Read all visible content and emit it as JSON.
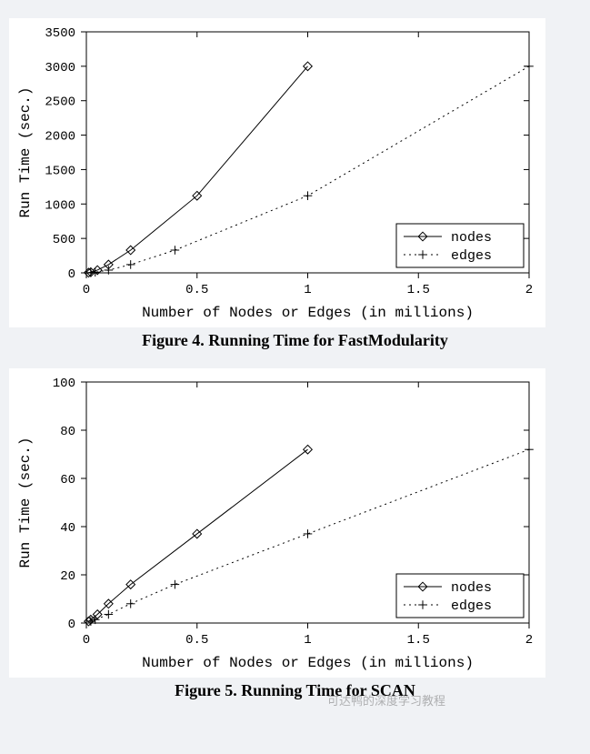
{
  "charts": [
    {
      "id": "fig4",
      "caption": "Figure 4. Running Time for FastModularity",
      "xlabel": "Number of Nodes or Edges (in millions)",
      "ylabel": "Run Time (sec.)",
      "xlim": [
        0,
        2
      ],
      "ylim": [
        0,
        3500
      ],
      "xtick_step": 0.5,
      "ytick_step": 500,
      "background_color": "#ffffff",
      "border_color": "#000000",
      "grid": false,
      "label_font": "Courier New",
      "label_fontsize": 16,
      "tick_fontsize": 14,
      "series_colors": {
        "nodes": "#000000",
        "edges": "#000000"
      },
      "line_styles": {
        "nodes": "solid",
        "edges": "dotted"
      },
      "markers": {
        "nodes": "diamond",
        "edges": "plus"
      },
      "marker_size": 6,
      "line_width": 1,
      "legend": {
        "position": "bottom-right",
        "entries": [
          {
            "key": "nodes",
            "label": "nodes"
          },
          {
            "key": "edges",
            "label": "edges"
          }
        ]
      },
      "series": {
        "nodes": [
          {
            "x": 0.01,
            "y": 3
          },
          {
            "x": 0.02,
            "y": 10
          },
          {
            "x": 0.05,
            "y": 40
          },
          {
            "x": 0.1,
            "y": 120
          },
          {
            "x": 0.2,
            "y": 330
          },
          {
            "x": 0.5,
            "y": 1120
          },
          {
            "x": 1.0,
            "y": 3000
          }
        ],
        "edges": [
          {
            "x": 0.02,
            "y": 3
          },
          {
            "x": 0.04,
            "y": 10
          },
          {
            "x": 0.1,
            "y": 40
          },
          {
            "x": 0.2,
            "y": 120
          },
          {
            "x": 0.4,
            "y": 330
          },
          {
            "x": 1.0,
            "y": 1120
          },
          {
            "x": 2.0,
            "y": 3000
          }
        ]
      }
    },
    {
      "id": "fig5",
      "caption": "Figure 5. Running Time for SCAN",
      "xlabel": "Number of Nodes or Edges (in millions)",
      "ylabel": "Run Time (sec.)",
      "xlim": [
        0,
        2
      ],
      "ylim": [
        0,
        100
      ],
      "xtick_step": 0.5,
      "ytick_step": 20,
      "background_color": "#ffffff",
      "border_color": "#000000",
      "grid": false,
      "label_font": "Courier New",
      "label_fontsize": 16,
      "tick_fontsize": 14,
      "series_colors": {
        "nodes": "#000000",
        "edges": "#000000"
      },
      "line_styles": {
        "nodes": "solid",
        "edges": "dotted"
      },
      "markers": {
        "nodes": "diamond",
        "edges": "plus"
      },
      "marker_size": 6,
      "line_width": 1,
      "legend": {
        "position": "bottom-right",
        "entries": [
          {
            "key": "nodes",
            "label": "nodes"
          },
          {
            "key": "edges",
            "label": "edges"
          }
        ]
      },
      "series": {
        "nodes": [
          {
            "x": 0.01,
            "y": 0.7
          },
          {
            "x": 0.02,
            "y": 1.4
          },
          {
            "x": 0.05,
            "y": 3.6
          },
          {
            "x": 0.1,
            "y": 8
          },
          {
            "x": 0.2,
            "y": 16
          },
          {
            "x": 0.5,
            "y": 37
          },
          {
            "x": 1.0,
            "y": 72
          }
        ],
        "edges": [
          {
            "x": 0.02,
            "y": 0.7
          },
          {
            "x": 0.04,
            "y": 1.4
          },
          {
            "x": 0.1,
            "y": 3.6
          },
          {
            "x": 0.2,
            "y": 8
          },
          {
            "x": 0.4,
            "y": 16
          },
          {
            "x": 1.0,
            "y": 37
          },
          {
            "x": 2.0,
            "y": 72
          }
        ]
      }
    }
  ],
  "watermark": "可达鸭的深度学习教程"
}
